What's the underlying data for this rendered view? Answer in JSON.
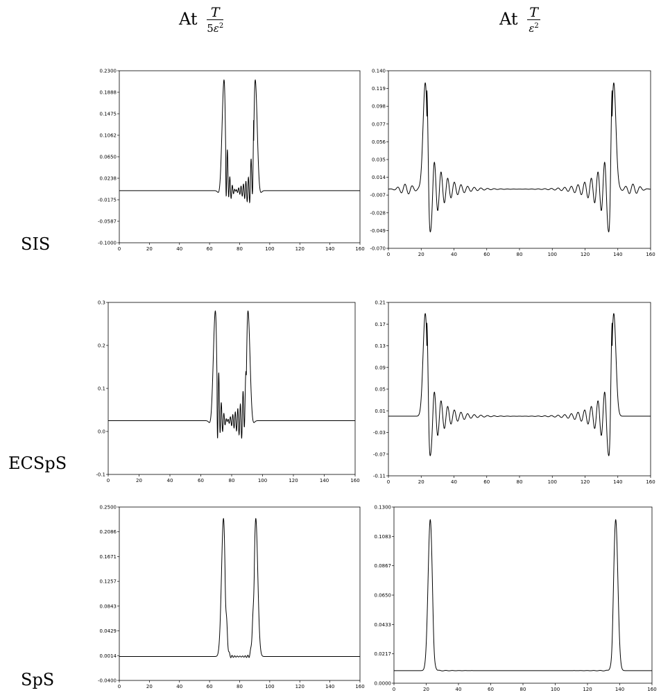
{
  "column_headers": [
    {
      "prefix": "At",
      "numerator": "T",
      "denominator_coef": "5",
      "denominator_var": "ε",
      "denominator_exp": "2"
    },
    {
      "prefix": "At",
      "numerator": "T",
      "denominator_coef": "",
      "denominator_var": "ε",
      "denominator_exp": "2"
    }
  ],
  "row_labels": [
    "SIS",
    "ECSpS",
    "SpS"
  ],
  "chart_data": [
    {
      "type": "line",
      "row": "SIS",
      "column": 1,
      "xlim": [
        0,
        160
      ],
      "ylim": [
        -0.1,
        0.23
      ],
      "xticks": [
        "0",
        "20",
        "40",
        "60",
        "80",
        "100",
        "120",
        "140",
        "160"
      ],
      "yticks": [
        "-0.1000",
        "-0.0587",
        "-0.0175",
        "0.0238",
        "0.0650",
        "0.1062",
        "0.1475",
        "0.1888",
        "0.2300"
      ],
      "series": [
        {
          "kind": "near",
          "baseline": 0.0,
          "peaks": [
            69.7,
            90.3
          ],
          "peak": 0.215,
          "dip": -0.092,
          "ripple": 0.045,
          "side_dip": -0.01
        }
      ]
    },
    {
      "type": "line",
      "row": "SIS",
      "column": 2,
      "xlim": [
        0,
        160
      ],
      "ylim": [
        -0.07,
        0.14
      ],
      "xticks": [
        "0",
        "20",
        "40",
        "60",
        "80",
        "100",
        "120",
        "140",
        "160"
      ],
      "yticks": [
        "-0.070",
        "-0.049",
        "-0.028",
        "-0.007",
        "0.014",
        "0.035",
        "0.056",
        "0.077",
        "0.098",
        "0.119",
        "0.140"
      ],
      "series": [
        {
          "kind": "far",
          "baseline": 0.0,
          "peaks": [
            22.5,
            137.5
          ],
          "peak": 0.126,
          "dip": -0.07,
          "ripple": 0.05,
          "side_bump": 0.006
        }
      ]
    },
    {
      "type": "line",
      "row": "ECSpS",
      "column": 1,
      "xlim": [
        0,
        160
      ],
      "ylim": [
        -0.15,
        0.33
      ],
      "xticks": [
        "0",
        "20",
        "40",
        "60",
        "80",
        "100",
        "120",
        "140",
        "160"
      ],
      "yticks": [
        "-0.1",
        "0.0",
        "0.1",
        "0.2",
        "0.3"
      ],
      "series": [
        {
          "kind": "near",
          "baseline": 0.0,
          "peaks": [
            69.5,
            90.5
          ],
          "peak": 0.31,
          "dip": -0.14,
          "ripple": 0.09,
          "side_dip": -0.015
        }
      ]
    },
    {
      "type": "line",
      "row": "ECSpS",
      "column": 2,
      "xlim": [
        0,
        160
      ],
      "ylim": [
        -0.11,
        0.21
      ],
      "xticks": [
        "0",
        "20",
        "40",
        "60",
        "80",
        "100",
        "120",
        "140",
        "160"
      ],
      "yticks": [
        "-0.11",
        "-0.07",
        "-0.03",
        "0.01",
        "0.05",
        "0.09",
        "0.13",
        "0.17",
        "0.21"
      ],
      "series": [
        {
          "kind": "far",
          "baseline": 0.0,
          "peaks": [
            22.5,
            137.5
          ],
          "peak": 0.19,
          "dip": -0.105,
          "ripple": 0.07,
          "side_bump": 0.0
        }
      ]
    },
    {
      "type": "line",
      "row": "SpS",
      "column": 1,
      "xlim": [
        0,
        160
      ],
      "ylim": [
        -0.04,
        0.25
      ],
      "xticks": [
        "0",
        "20",
        "40",
        "60",
        "80",
        "100",
        "120",
        "140",
        "160"
      ],
      "yticks": [
        "-0.0400",
        "0.0014",
        "0.0429",
        "0.0843",
        "0.1257",
        "0.1671",
        "0.2086",
        "0.2500"
      ],
      "series": [
        {
          "kind": "clean",
          "baseline": 0.0,
          "peaks": [
            69.3,
            90.7
          ],
          "peak": 0.232,
          "dip": -0.04,
          "ripple": 0.012,
          "side_dip": 0.0
        }
      ]
    },
    {
      "type": "line",
      "row": "SpS",
      "column": 2,
      "xlim": [
        0,
        160
      ],
      "ylim": [
        -0.01,
        0.13
      ],
      "xticks": [
        "0",
        "20",
        "40",
        "60",
        "80",
        "100",
        "120",
        "140",
        "160"
      ],
      "yticks": [
        "0.0000",
        "0.0217",
        "0.0433",
        "0.0650",
        "0.0867",
        "0.1083",
        "0.1300"
      ],
      "series": [
        {
          "kind": "cleanfar",
          "baseline": 0.0,
          "peaks": [
            22.5,
            137.5
          ],
          "peak": 0.12,
          "dip": -0.008,
          "ripple": 0.003,
          "side_bump": 0.0
        }
      ]
    }
  ]
}
